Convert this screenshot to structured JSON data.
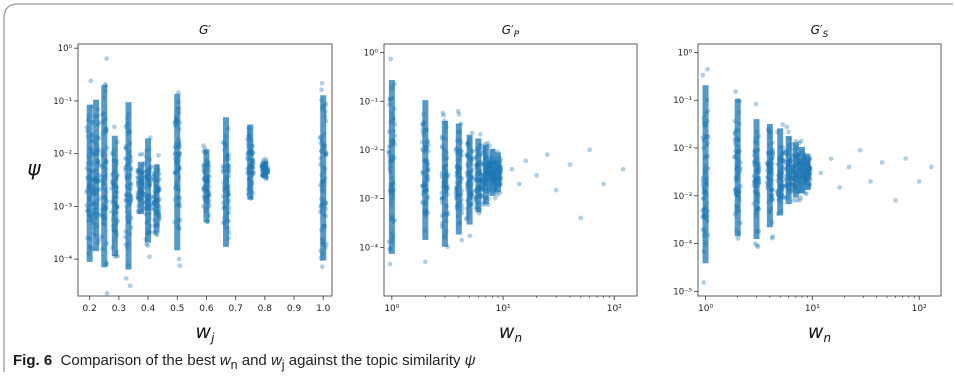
{
  "figure": {
    "label": "Fig. 6",
    "caption_text": "Comparison of the best w_n and w_j against the topic similarity ψ",
    "caption_pre": "Comparison of the best ",
    "caption_mid": " and ",
    "caption_post": " against the topic similarity ",
    "w_base": "w",
    "sub_n": "n",
    "sub_j": "j",
    "psi": "ψ"
  },
  "colors": {
    "points": "#1f77b4",
    "frame": "#9a9a9a",
    "caption_bg": "#ffffff"
  },
  "chart_data": [
    {
      "type": "scatter",
      "title": "G′",
      "xlabel": "w_j",
      "xlabel_base": "w",
      "xlabel_sub": "j",
      "ylabel": "ψ",
      "xscale": "linear",
      "yscale": "log",
      "xlim": [
        0.16,
        1.03
      ],
      "ylim": [
        2e-05,
        1.2
      ],
      "xticks": [
        0.2,
        0.3,
        0.4,
        0.5,
        0.6,
        0.7,
        0.8,
        0.9,
        1.0
      ],
      "xticklabels": [
        "0.2",
        "0.3",
        "0.4",
        "0.5",
        "0.6",
        "0.7",
        "0.8",
        "0.9",
        "1.0"
      ],
      "yticks": [
        0.0001,
        0.001,
        0.01,
        0.1,
        1
      ],
      "yticklabels": [
        "10⁻⁴",
        "10⁻³",
        "10⁻²",
        "10⁻¹",
        "10⁰"
      ],
      "columns": [
        {
          "x": 0.2,
          "ymin": 3e-05,
          "ymax": 0.25
        },
        {
          "x": 0.222,
          "ymin": 5e-05,
          "ymax": 0.3
        },
        {
          "x": 0.25,
          "ymin": 2e-05,
          "ymax": 0.7
        },
        {
          "x": 0.286,
          "ymin": 5e-05,
          "ymax": 0.05
        },
        {
          "x": 0.333,
          "ymin": 2e-05,
          "ymax": 0.3
        },
        {
          "x": 0.375,
          "ymin": 0.0005,
          "ymax": 0.01
        },
        {
          "x": 0.4,
          "ymin": 0.0001,
          "ymax": 0.04
        },
        {
          "x": 0.429,
          "ymin": 0.0002,
          "ymax": 0.01
        },
        {
          "x": 0.5,
          "ymin": 5e-05,
          "ymax": 0.4
        },
        {
          "x": 0.6,
          "ymin": 0.0003,
          "ymax": 0.02
        },
        {
          "x": 0.667,
          "ymin": 7e-05,
          "ymax": 0.12
        },
        {
          "x": 0.75,
          "ymin": 0.0008,
          "ymax": 0.06
        },
        {
          "x": 0.8,
          "ymin": 0.003,
          "ymax": 0.008
        },
        {
          "x": 1.0,
          "ymin": 3e-05,
          "ymax": 0.4
        }
      ],
      "grid": false
    },
    {
      "type": "scatter",
      "title": "G′P",
      "title_base": "G′",
      "title_sub": "P",
      "xlabel": "w_n",
      "xlabel_base": "w",
      "xlabel_sub": "n",
      "ylabel": "",
      "xscale": "log",
      "yscale": "log",
      "xlim": [
        0.85,
        160
      ],
      "ylim": [
        1e-05,
        1.5
      ],
      "xticks": [
        1,
        10,
        100
      ],
      "xticklabels": [
        "10⁰",
        "10¹",
        "10²"
      ],
      "yticks": [
        0.0001,
        0.001,
        0.01,
        0.1,
        1
      ],
      "yticklabels": [
        "10⁻⁴",
        "10⁻³",
        "10⁻²",
        "10⁻¹",
        "10⁰"
      ],
      "columns": [
        {
          "x": 1,
          "ymin": 2e-05,
          "ymax": 1.0
        },
        {
          "x": 2,
          "ymin": 5e-05,
          "ymax": 0.3
        },
        {
          "x": 3,
          "ymin": 4e-05,
          "ymax": 0.1
        },
        {
          "x": 4,
          "ymin": 8e-05,
          "ymax": 0.08
        },
        {
          "x": 5,
          "ymin": 0.00015,
          "ymax": 0.04
        },
        {
          "x": 6,
          "ymin": 0.0003,
          "ymax": 0.03
        },
        {
          "x": 7,
          "ymin": 0.0005,
          "ymax": 0.02
        },
        {
          "x": 8,
          "ymin": 0.0008,
          "ymax": 0.015
        },
        {
          "x": 9,
          "ymin": 0.001,
          "ymax": 0.012
        }
      ],
      "sparse_points": [
        {
          "x": 12,
          "y": 0.004
        },
        {
          "x": 14,
          "y": 0.002
        },
        {
          "x": 16,
          "y": 0.006
        },
        {
          "x": 20,
          "y": 0.003
        },
        {
          "x": 25,
          "y": 0.008
        },
        {
          "x": 30,
          "y": 0.0015
        },
        {
          "x": 40,
          "y": 0.005
        },
        {
          "x": 50,
          "y": 0.0004
        },
        {
          "x": 60,
          "y": 0.01
        },
        {
          "x": 80,
          "y": 0.002
        },
        {
          "x": 120,
          "y": 0.004
        }
      ],
      "grid": false
    },
    {
      "type": "scatter",
      "title": "G′S",
      "title_base": "G′",
      "title_sub": "S",
      "xlabel": "w_n",
      "xlabel_base": "w",
      "xlabel_sub": "n",
      "ylabel": "",
      "xscale": "log",
      "yscale": "log",
      "xlim": [
        0.85,
        160
      ],
      "ylim": [
        8e-06,
        1.5
      ],
      "xticks": [
        1,
        10,
        100
      ],
      "xticklabels": [
        "10⁰",
        "10¹",
        "10²"
      ],
      "yticks": [
        1e-05,
        0.0001,
        0.001,
        0.01,
        0.1,
        1
      ],
      "yticklabels": [
        "10⁻⁵",
        "10⁻⁴",
        "10⁻³",
        "10⁻²",
        "10⁻¹",
        "10⁰"
      ],
      "columns": [
        {
          "x": 1,
          "ymin": 1e-05,
          "ymax": 0.8
        },
        {
          "x": 2,
          "ymin": 5e-05,
          "ymax": 0.3
        },
        {
          "x": 3,
          "ymin": 5e-05,
          "ymax": 0.1
        },
        {
          "x": 4,
          "ymin": 0.0001,
          "ymax": 0.07
        },
        {
          "x": 5,
          "ymin": 0.0002,
          "ymax": 0.05
        },
        {
          "x": 6,
          "ymin": 0.0004,
          "ymax": 0.03
        },
        {
          "x": 7,
          "ymin": 0.0006,
          "ymax": 0.02
        },
        {
          "x": 8,
          "ymin": 0.0008,
          "ymax": 0.015
        },
        {
          "x": 9,
          "ymin": 0.001,
          "ymax": 0.01
        }
      ],
      "sparse_points": [
        {
          "x": 12,
          "y": 0.003
        },
        {
          "x": 15,
          "y": 0.006
        },
        {
          "x": 18,
          "y": 0.0015
        },
        {
          "x": 22,
          "y": 0.004
        },
        {
          "x": 28,
          "y": 0.009
        },
        {
          "x": 35,
          "y": 0.002
        },
        {
          "x": 45,
          "y": 0.005
        },
        {
          "x": 60,
          "y": 0.0008
        },
        {
          "x": 75,
          "y": 0.006
        },
        {
          "x": 100,
          "y": 0.002
        },
        {
          "x": 130,
          "y": 0.004
        }
      ],
      "grid": false
    }
  ]
}
